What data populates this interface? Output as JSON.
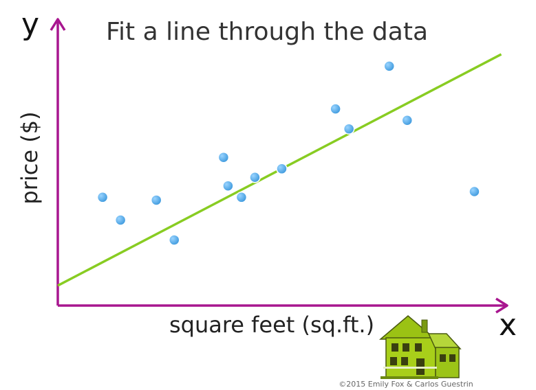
{
  "chart_data": {
    "type": "scatter",
    "title": "Fit a line through the data",
    "xlabel": "square feet (sq.ft.)",
    "ylabel": "price ($)",
    "x_axis_letter": "x",
    "y_axis_letter": "y",
    "points": [
      {
        "x": 0.1,
        "y": 0.38
      },
      {
        "x": 0.14,
        "y": 0.3
      },
      {
        "x": 0.22,
        "y": 0.37
      },
      {
        "x": 0.26,
        "y": 0.23
      },
      {
        "x": 0.37,
        "y": 0.52
      },
      {
        "x": 0.38,
        "y": 0.42
      },
      {
        "x": 0.41,
        "y": 0.38
      },
      {
        "x": 0.44,
        "y": 0.45
      },
      {
        "x": 0.5,
        "y": 0.48
      },
      {
        "x": 0.62,
        "y": 0.69
      },
      {
        "x": 0.65,
        "y": 0.62
      },
      {
        "x": 0.74,
        "y": 0.84
      },
      {
        "x": 0.78,
        "y": 0.65
      },
      {
        "x": 0.93,
        "y": 0.4
      }
    ],
    "fit_line": {
      "intercept": 0.07,
      "slope": 0.82
    },
    "xlim": [
      0,
      1
    ],
    "ylim": [
      0,
      1
    ],
    "grid": false,
    "colors": {
      "axes": "#a8168f",
      "points": "#4aa7e6",
      "line": "#88cc22"
    }
  },
  "copyright": "©2015 Emily Fox & Carlos Guestrin",
  "house_icon": "house-icon"
}
